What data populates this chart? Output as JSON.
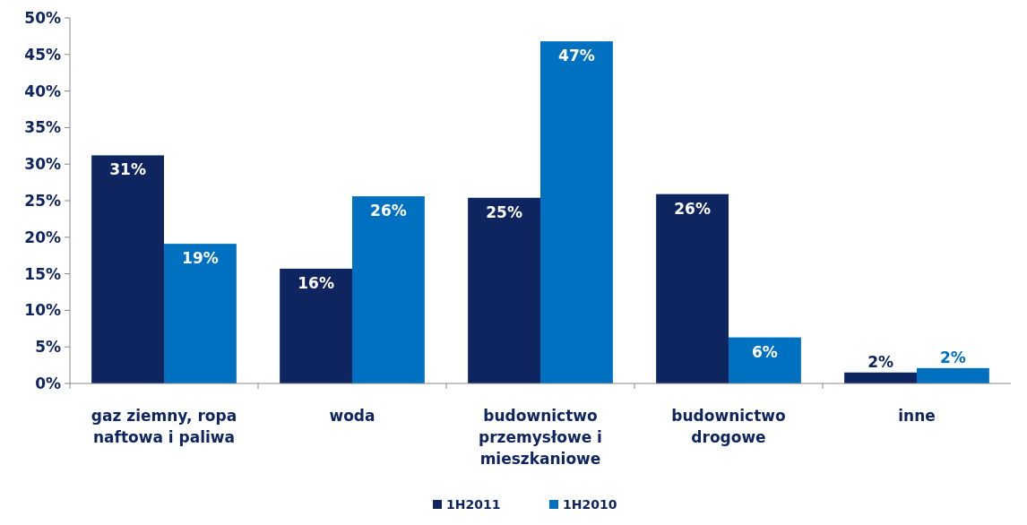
{
  "chart_data": {
    "type": "bar",
    "categories": [
      "gaz ziemny, ropa naftowa i paliwa",
      "woda",
      "budownictwo przemysłowe i mieszkaniowe",
      "budownictwo drogowe",
      "inne"
    ],
    "series": [
      {
        "name": "1H2011",
        "color": "#0f2560",
        "values": [
          31.2,
          15.7,
          25.4,
          25.9,
          1.5
        ],
        "value_labels": [
          "31%",
          "16%",
          "25%",
          "26%",
          "2%"
        ]
      },
      {
        "name": "1H2010",
        "color": "#0070c0",
        "values": [
          19.1,
          25.6,
          46.8,
          6.3,
          2.1
        ],
        "value_labels": [
          "19%",
          "26%",
          "47%",
          "6%",
          "2%"
        ]
      }
    ],
    "ylim": [
      0,
      50
    ],
    "yticks": [
      {
        "value": 0,
        "label": "0%"
      },
      {
        "value": 5,
        "label": "5%"
      },
      {
        "value": 10,
        "label": "10%"
      },
      {
        "value": 15,
        "label": "15%"
      },
      {
        "value": 20,
        "label": "20%"
      },
      {
        "value": 25,
        "label": "25%"
      },
      {
        "value": 30,
        "label": "30%"
      },
      {
        "value": 35,
        "label": "35%"
      },
      {
        "value": 40,
        "label": "40%"
      },
      {
        "value": 45,
        "label": "45%"
      },
      {
        "value": 50,
        "label": "50%"
      }
    ],
    "grid": false,
    "legend": "bottom"
  }
}
